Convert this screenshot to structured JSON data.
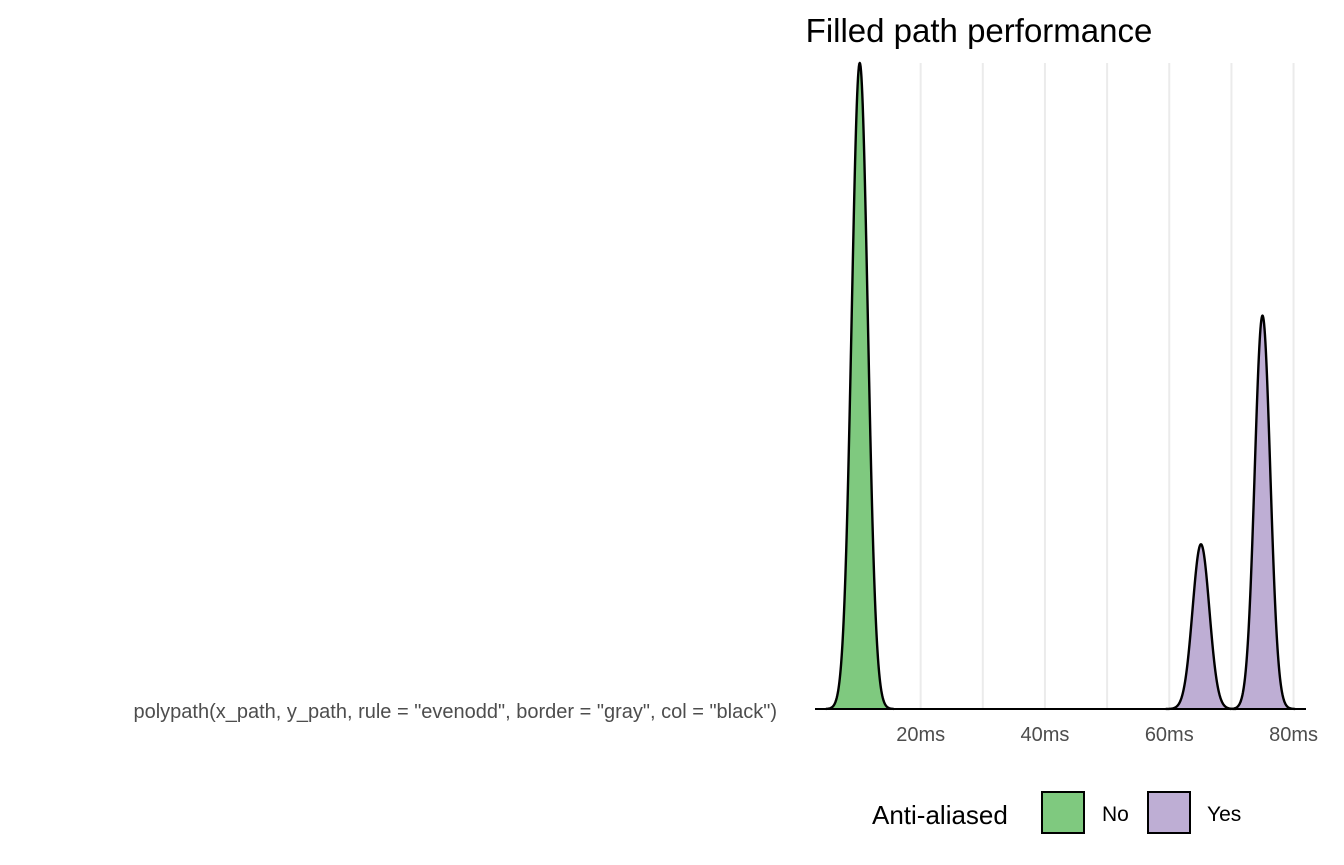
{
  "chart_data": {
    "type": "area",
    "title": "Filled path performance",
    "xlabel": "",
    "ylabel": "",
    "category": "polypath(x_path, y_path, rule = \"evenodd\", border = \"gray\", col = \"black\")",
    "xlim": [
      3,
      82
    ],
    "x_ticks": [
      20,
      40,
      60,
      80
    ],
    "x_tick_labels": [
      "20ms",
      "40ms",
      "60ms",
      "80ms"
    ],
    "x_gridlines": [
      10,
      20,
      30,
      40,
      50,
      60,
      70,
      80
    ],
    "grid": true,
    "y_relative_max": 1.0,
    "series": [
      {
        "name": "No",
        "color": "#7fc97f",
        "peaks": [
          {
            "center_ms": 10.2,
            "sd_ms": 1.3,
            "relative_height": 1.0
          }
        ]
      },
      {
        "name": "Yes",
        "color": "#beaed4",
        "peaks": [
          {
            "center_ms": 65.1,
            "sd_ms": 1.35,
            "relative_height": 0.255
          },
          {
            "center_ms": 75.0,
            "sd_ms": 1.25,
            "relative_height": 0.609
          }
        ]
      }
    ],
    "legend": {
      "title": "Anti-aliased",
      "position": "bottom",
      "entries": [
        "No",
        "Yes"
      ]
    }
  }
}
